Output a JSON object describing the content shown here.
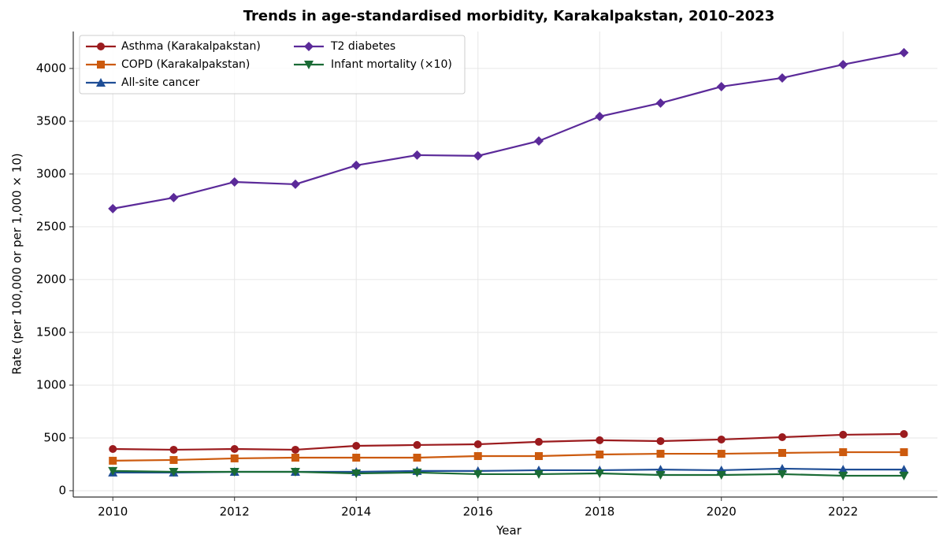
{
  "chart_data": {
    "type": "line",
    "title": "Trends in age-standardised morbidity, Karakalpakstan, 2010–2023",
    "x_label": "Year",
    "y_label": "Rate (per 100,000 or per 1,000 × 10)",
    "x": [
      2010,
      2011,
      2012,
      2013,
      2014,
      2015,
      2016,
      2017,
      2018,
      2019,
      2020,
      2021,
      2022,
      2023
    ],
    "series": [
      {
        "name": "Asthma (Karakalpakstan)",
        "color": "#9b1b1e",
        "marker": "circle",
        "values": [
          395,
          388,
          395,
          388,
          425,
          433,
          440,
          463,
          478,
          470,
          485,
          507,
          530,
          537
        ]
      },
      {
        "name": "COPD (Karakalpakstan)",
        "color": "#cc5a0e",
        "marker": "square",
        "values": [
          284,
          291,
          306,
          313,
          313,
          313,
          328,
          328,
          343,
          350,
          350,
          358,
          365,
          365
        ]
      },
      {
        "name": "All-site cancer",
        "color": "#1f4e96",
        "marker": "triangle-up",
        "values": [
          172,
          172,
          179,
          179,
          179,
          187,
          187,
          194,
          194,
          200,
          194,
          209,
          200,
          200
        ]
      },
      {
        "name": "T2 diabetes",
        "color": "#5b2a99",
        "marker": "diamond",
        "values": [
          2672,
          2776,
          2925,
          2903,
          3082,
          3179,
          3172,
          3313,
          3545,
          3672,
          3828,
          3910,
          4037,
          4149
        ]
      },
      {
        "name": "Infant mortality (×10)",
        "color": "#1a6b35",
        "marker": "triangle-down",
        "values": [
          187,
          179,
          179,
          179,
          164,
          172,
          157,
          157,
          164,
          149,
          149,
          157,
          142,
          142
        ]
      }
    ],
    "xlim": [
      2009.35,
      2023.55
    ],
    "ylim": [
      -60,
      4350
    ],
    "xticks": [
      2010,
      2012,
      2014,
      2016,
      2018,
      2020,
      2022
    ],
    "yticks": [
      0,
      500,
      1000,
      1500,
      2000,
      2500,
      3000,
      3500,
      4000
    ],
    "grid": true,
    "legend_position": "upper-left"
  }
}
